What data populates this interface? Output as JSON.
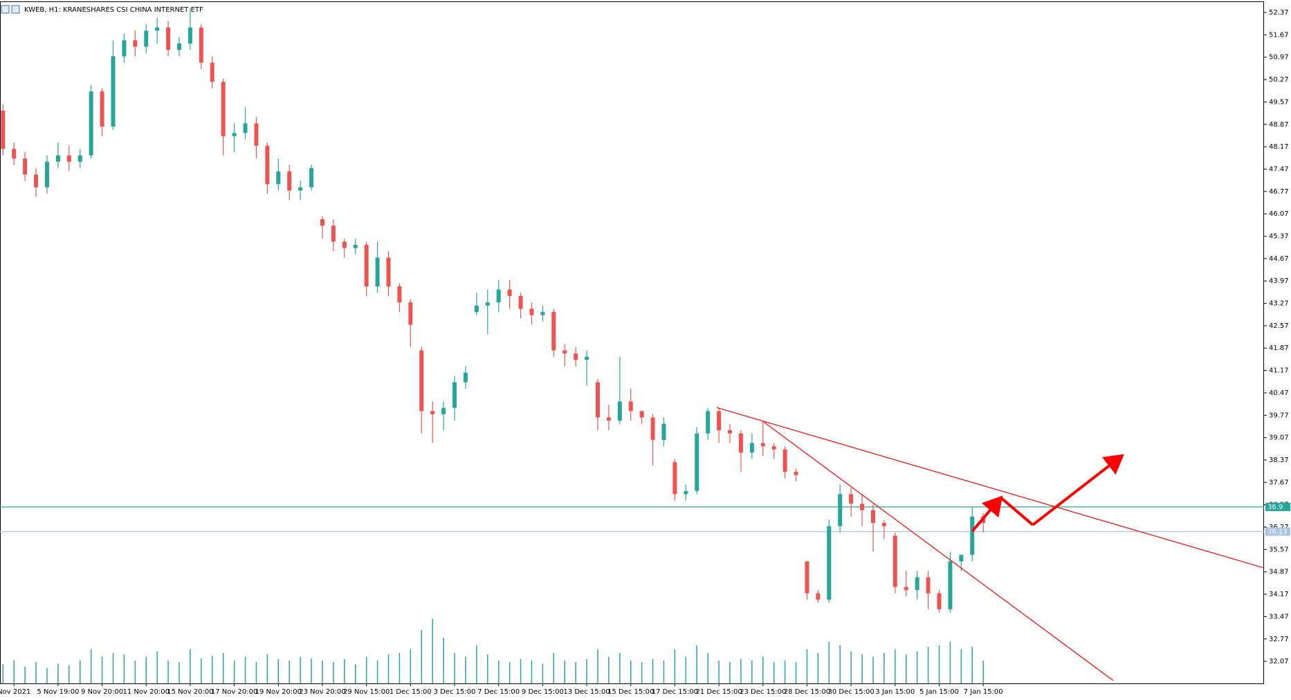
{
  "chart_data": {
    "type": "candlestick",
    "title": "KWEB, H1:  KRANESHARES CSI CHINA INTERNET ETF",
    "categories": [
      null,
      "Nov 2021",
      null,
      null,
      null,
      "5 Nov 19:00",
      null,
      null,
      null,
      "9 Nov 20:00",
      null,
      null,
      null,
      "11 Nov 20:00",
      null,
      null,
      null,
      "15 Nov 20:00",
      null,
      null,
      null,
      "17 Nov 20:00",
      null,
      null,
      null,
      "19 Nov 20:00",
      null,
      null,
      null,
      "23 Nov 20:00",
      null,
      null,
      null,
      "29 Nov 15:00",
      null,
      null,
      null,
      "1 Dec 15:00",
      null,
      null,
      null,
      "3 Dec 15:00",
      null,
      null,
      null,
      "7 Dec 15:00",
      null,
      null,
      null,
      "9 Dec 15:00",
      null,
      null,
      null,
      "13 Dec 15:00",
      null,
      null,
      null,
      "15 Dec 15:00",
      null,
      null,
      null,
      "17 Dec 15:00",
      null,
      null,
      null,
      "21 Dec 15:00",
      null,
      null,
      null,
      "23 Dec 15:00",
      null,
      null,
      null,
      "28 Dec 15:00",
      null,
      null,
      null,
      "30 Dec 15:00",
      null,
      null,
      null,
      "3 Jan 15:00",
      null,
      null,
      null,
      "5 Jan 15:00",
      null,
      null,
      null,
      "7 Jan 15:00"
    ],
    "open": [
      49.3,
      48.1,
      47.8,
      47.3,
      46.9,
      47.7,
      47.9,
      47.7,
      47.9,
      49.9,
      48.8,
      51.0,
      51.5,
      51.3,
      51.8,
      51.9,
      51.2,
      51.4,
      51.9,
      50.8,
      50.2,
      48.5,
      48.6,
      48.9,
      48.2,
      47.0,
      47.4,
      46.8,
      46.9,
      45.9,
      45.7,
      45.2,
      45.0,
      45.1,
      43.8,
      44.7,
      43.8,
      43.3,
      41.8,
      39.9,
      39.8,
      40.0,
      40.8,
      43.0,
      43.2,
      43.3,
      43.7,
      43.5,
      43.1,
      42.9,
      43.0,
      41.8,
      41.7,
      41.5,
      40.8,
      39.7,
      39.6,
      40.2,
      39.9,
      39.7,
      39.0,
      38.3,
      37.3,
      37.4,
      39.2,
      39.9,
      39.3,
      39.2,
      38.6,
      38.9,
      38.8,
      38.7,
      38.0,
      35.2,
      34.2,
      34.0,
      36.3,
      37.3,
      37.0,
      36.8,
      36.4,
      36.0,
      34.4,
      34.3,
      34.7,
      34.2,
      33.7,
      35.2,
      35.4,
      36.6
    ],
    "high": [
      49.5,
      48.3,
      48.0,
      47.5,
      47.9,
      48.3,
      48.2,
      48.1,
      50.1,
      50.0,
      51.5,
      51.7,
      51.8,
      52.0,
      52.2,
      52.1,
      51.6,
      52.5,
      52.0,
      51.0,
      50.3,
      48.9,
      49.4,
      49.1,
      48.3,
      47.8,
      47.6,
      47.1,
      47.6,
      46.0,
      45.9,
      45.3,
      45.3,
      45.2,
      45.2,
      44.9,
      43.9,
      43.4,
      41.9,
      40.2,
      40.2,
      41.0,
      41.3,
      43.6,
      43.7,
      44.0,
      44.0,
      43.6,
      43.3,
      43.2,
      43.1,
      42.0,
      41.9,
      41.8,
      40.9,
      40.1,
      41.6,
      40.6,
      39.9,
      39.8,
      39.7,
      38.4,
      37.6,
      39.4,
      40.0,
      40.0,
      39.5,
      39.3,
      39.2,
      39.6,
      38.9,
      38.8,
      38.1,
      35.2,
      34.3,
      36.5,
      37.6,
      37.5,
      37.3,
      37.0,
      36.5,
      36.1,
      34.9,
      34.9,
      34.9,
      34.3,
      35.5,
      35.4,
      36.9,
      36.7
    ],
    "low": [
      47.9,
      47.6,
      47.1,
      46.6,
      46.7,
      47.5,
      47.4,
      47.5,
      47.8,
      48.5,
      48.7,
      50.8,
      51.0,
      51.1,
      51.4,
      51.0,
      51.0,
      51.2,
      50.6,
      50.0,
      47.9,
      48.0,
      48.4,
      47.8,
      46.7,
      46.8,
      46.5,
      46.5,
      46.8,
      45.3,
      44.9,
      44.7,
      44.8,
      43.5,
      43.6,
      43.5,
      43.0,
      41.9,
      39.2,
      38.9,
      39.3,
      39.6,
      40.6,
      42.9,
      42.3,
      43.0,
      43.1,
      42.8,
      42.6,
      42.7,
      41.6,
      41.3,
      41.3,
      40.7,
      39.3,
      39.3,
      39.5,
      39.6,
      39.5,
      38.2,
      38.8,
      37.1,
      37.1,
      37.3,
      39.0,
      38.9,
      38.9,
      38.0,
      38.4,
      38.5,
      38.4,
      37.8,
      37.7,
      34.0,
      33.9,
      33.9,
      36.1,
      36.6,
      36.3,
      35.5,
      35.9,
      34.2,
      34.1,
      34.0,
      33.7,
      33.6,
      33.6,
      34.9,
      35.2,
      36.1
    ],
    "close": [
      48.1,
      47.8,
      47.3,
      46.9,
      47.7,
      47.9,
      47.7,
      47.9,
      49.9,
      48.8,
      51.0,
      51.5,
      51.3,
      51.8,
      51.9,
      51.2,
      51.4,
      51.9,
      50.8,
      50.2,
      48.5,
      48.6,
      48.9,
      48.2,
      47.0,
      47.4,
      46.8,
      46.9,
      47.5,
      45.7,
      45.2,
      45.0,
      45.1,
      43.8,
      44.7,
      43.8,
      43.3,
      42.6,
      39.9,
      39.8,
      40.0,
      40.8,
      41.1,
      43.2,
      43.3,
      43.7,
      43.5,
      43.1,
      42.9,
      43.0,
      41.8,
      41.7,
      41.5,
      41.6,
      39.7,
      39.6,
      40.2,
      39.9,
      39.7,
      39.0,
      39.5,
      37.3,
      37.4,
      39.2,
      39.9,
      39.3,
      39.2,
      38.6,
      38.9,
      38.8,
      38.7,
      38.0,
      37.9,
      34.2,
      34.0,
      36.3,
      37.3,
      37.0,
      36.8,
      36.4,
      36.3,
      34.4,
      34.3,
      34.7,
      34.2,
      33.7,
      35.2,
      35.4,
      36.6,
      36.4
    ],
    "volume": [
      25,
      30,
      22,
      28,
      20,
      26,
      24,
      30,
      45,
      35,
      40,
      38,
      30,
      35,
      42,
      30,
      28,
      45,
      33,
      36,
      40,
      30,
      35,
      28,
      38,
      32,
      30,
      35,
      33,
      30,
      28,
      32,
      25,
      35,
      30,
      38,
      40,
      45,
      70,
      85,
      60,
      40,
      35,
      50,
      38,
      30,
      28,
      32,
      30,
      26,
      40,
      30,
      28,
      32,
      45,
      35,
      40,
      30,
      28,
      32,
      30,
      45,
      35,
      50,
      40,
      30,
      28,
      32,
      30,
      35,
      28,
      30,
      28,
      45,
      40,
      55,
      50,
      42,
      38,
      35,
      40,
      45,
      38,
      42,
      48,
      50,
      55,
      45,
      48,
      30
    ],
    "up_color": "#26a69a",
    "down_color": "#ef5350",
    "ylim": [
      31.38,
      52.63
    ],
    "yticks": [
      52.37,
      51.67,
      50.97,
      50.27,
      49.57,
      48.87,
      48.17,
      47.47,
      46.77,
      46.07,
      45.37,
      44.67,
      43.97,
      43.27,
      42.57,
      41.87,
      41.17,
      40.47,
      39.77,
      39.07,
      38.37,
      37.67,
      36.97,
      36.27,
      35.57,
      34.87,
      34.17,
      33.47,
      32.77,
      32.07
    ],
    "levels": [
      {
        "value": 36.9,
        "color": "#26a69a"
      },
      {
        "value": 36.13,
        "color": "#a9c3e6"
      }
    ],
    "trendlines": [
      {
        "x": [
          64.8,
          114.5
        ],
        "y": [
          40.01,
          34.99
        ],
        "color": "#ff0000"
      },
      {
        "x": [
          69.1,
          100.8
        ],
        "y": [
          39.55,
          31.47
        ],
        "color": "#ff0000"
      }
    ],
    "arrows": {
      "x": [
        88.0,
        90.6,
        93.5,
        101.6
      ],
      "y": [
        36.14,
        37.19,
        36.34,
        38.5
      ],
      "color": "#ff0000"
    }
  }
}
